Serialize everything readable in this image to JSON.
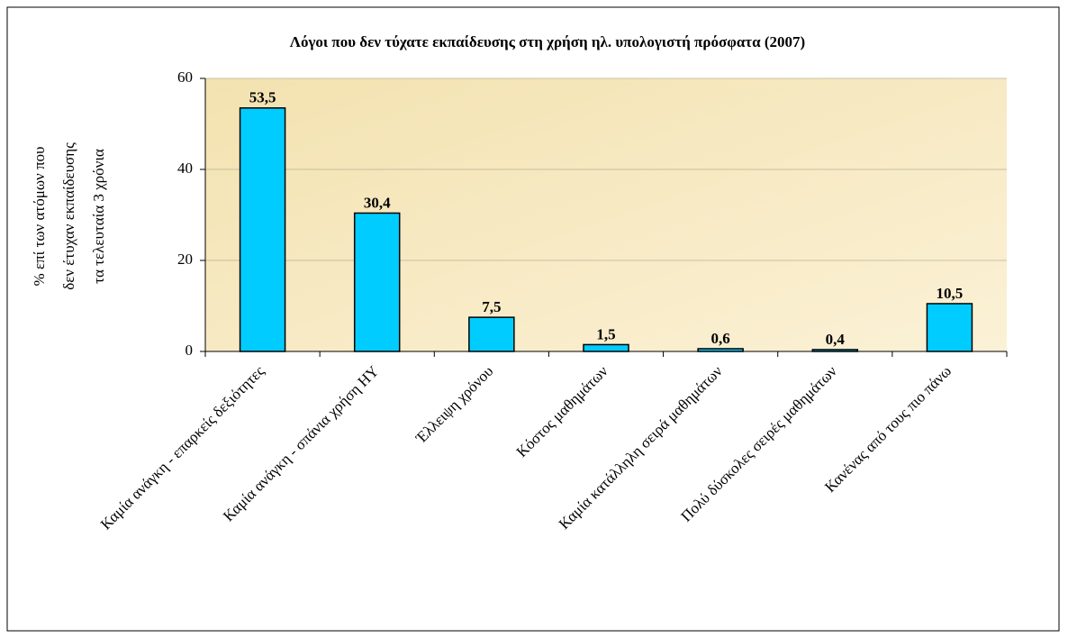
{
  "chart_data": {
    "type": "bar",
    "title": "Λόγοι που δεν τύχατε εκπαίδευσης στη χρήση ηλ. υπολογιστή πρόσφατα  (2007)",
    "ylabel": [
      "% επί των ατόμων που",
      "δεν έτυχαν εκπαίδευσης",
      "τα τελευταία 3 χρόνια"
    ],
    "categories": [
      "Καμία ανάγκη - επαρκείς δεξιότητες",
      "Καμία ανάγκη - σπάνια χρήση ΗΥ",
      "Έλλειψη χρόνου",
      "Κόστος μαθημάτων",
      "Καμία κατάλληλη σειρά μαθημάτων",
      "Πολύ δύσκολες σειρές μαθημάτων",
      "Κανένας από τους πιο πάνω"
    ],
    "values": [
      53.5,
      30.4,
      7.5,
      1.5,
      0.6,
      0.4,
      10.5
    ],
    "value_labels": [
      "53,5",
      "30,4",
      "7,5",
      "1,5",
      "0,6",
      "0,4",
      "10,5"
    ],
    "color": "#00ccff",
    "ylim": [
      0,
      60
    ],
    "yticks": [
      0,
      20,
      40,
      60
    ],
    "grid": true
  }
}
